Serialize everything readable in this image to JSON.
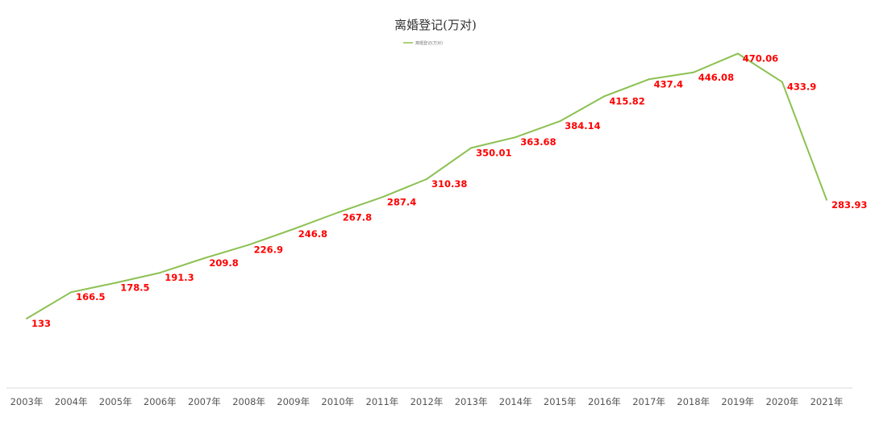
{
  "chart_data": {
    "type": "line",
    "title": "离婚登记(万对)",
    "categories": [
      "2003年",
      "2004年",
      "2005年",
      "2006年",
      "2007年",
      "2008年",
      "2009年",
      "2010年",
      "2011年",
      "2012年",
      "2013年",
      "2014年",
      "2015年",
      "2016年",
      "2017年",
      "2018年",
      "2019年",
      "2020年",
      "2021年"
    ],
    "series": [
      {
        "name": "离婚登记(万对)",
        "values": [
          133,
          166.5,
          178.5,
          191.3,
          209.8,
          226.9,
          246.8,
          267.8,
          287.4,
          310.38,
          350.01,
          363.68,
          384.14,
          415.82,
          437.4,
          446.08,
          470.06,
          433.9,
          283.93
        ],
        "labels": [
          "133",
          "166.5",
          "178.5",
          "191.3",
          "209.8",
          "226.9",
          "246.8",
          "267.8",
          "287.4",
          "310.38",
          "350.01",
          "363.68",
          "384.14",
          "415.82",
          "437.4",
          "446.08",
          "470.06",
          "433.9",
          "283.93"
        ]
      }
    ],
    "xlabel": "",
    "ylabel": "",
    "ylim": [
      0,
      550
    ],
    "grid": false,
    "legend": "top-center",
    "y_axis_visible": false,
    "colors": {
      "line": "#8cc152",
      "data_labels": "#ff0000",
      "axis_line": "#d9d9d9",
      "tick_text": "#555555",
      "title_text": "#333333"
    }
  }
}
